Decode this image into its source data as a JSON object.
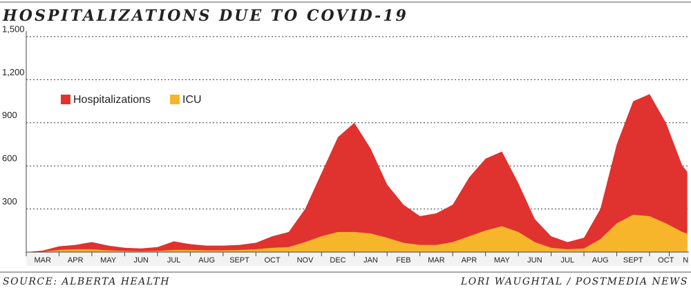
{
  "chart_data": {
    "type": "area",
    "title": "HOSPITALIZATIONS DUE TO COVID-19",
    "source": "SOURCE: ALBERTA HEALTH",
    "credit": "LORI WAUGHTAL / POSTMEDIA NEWS",
    "x": [
      0,
      0.5,
      1,
      1.5,
      2,
      2.5,
      3,
      3.5,
      4,
      4.5,
      5,
      5.5,
      6,
      6.5,
      7,
      7.5,
      8,
      8.5,
      9,
      9.5,
      10,
      10.5,
      11,
      11.5,
      12,
      12.5,
      13,
      13.5,
      14,
      14.5,
      15,
      15.5,
      16,
      16.5,
      17,
      17.5,
      18,
      18.5,
      19,
      19.5,
      20,
      20.15
    ],
    "series": [
      {
        "name": "Hospitalizations",
        "color": "#e0322f",
        "values": [
          0,
          10,
          40,
          50,
          70,
          45,
          30,
          25,
          35,
          75,
          55,
          45,
          45,
          50,
          65,
          110,
          140,
          300,
          550,
          800,
          900,
          720,
          470,
          330,
          250,
          270,
          330,
          520,
          650,
          700,
          480,
          230,
          110,
          70,
          100,
          300,
          750,
          1050,
          1100,
          900,
          600,
          560
        ]
      },
      {
        "name": "ICU",
        "color": "#f7b52c",
        "values": [
          0,
          3,
          15,
          20,
          20,
          12,
          8,
          6,
          8,
          15,
          15,
          12,
          12,
          15,
          20,
          30,
          35,
          70,
          110,
          140,
          140,
          130,
          100,
          65,
          50,
          50,
          70,
          110,
          150,
          180,
          140,
          70,
          30,
          20,
          25,
          90,
          200,
          260,
          250,
          200,
          140,
          130
        ]
      }
    ],
    "xlim": [
      0,
      20.2
    ],
    "xticks": [
      {
        "value": 0.5,
        "label": "MAR"
      },
      {
        "value": 1.5,
        "label": "APR"
      },
      {
        "value": 2.5,
        "label": "MAY"
      },
      {
        "value": 3.5,
        "label": "JUN"
      },
      {
        "value": 4.5,
        "label": "JUL"
      },
      {
        "value": 5.5,
        "label": "AUG"
      },
      {
        "value": 6.5,
        "label": "SEPT"
      },
      {
        "value": 7.5,
        "label": "OCT"
      },
      {
        "value": 8.5,
        "label": "NOV"
      },
      {
        "value": 9.5,
        "label": "DEC"
      },
      {
        "value": 10.5,
        "label": "JAN"
      },
      {
        "value": 11.5,
        "label": "FEB"
      },
      {
        "value": 12.5,
        "label": "MAR"
      },
      {
        "value": 13.5,
        "label": "APR"
      },
      {
        "value": 14.5,
        "label": "MAY"
      },
      {
        "value": 15.5,
        "label": "JUN"
      },
      {
        "value": 16.5,
        "label": "JUL"
      },
      {
        "value": 17.5,
        "label": "AUG"
      },
      {
        "value": 18.5,
        "label": "SEPT"
      },
      {
        "value": 19.5,
        "label": "OCT"
      },
      {
        "value": 20.1,
        "label": "N"
      }
    ],
    "ylim": [
      0,
      1500
    ],
    "yticks": [
      300,
      600,
      900,
      {
        "value": 1200,
        "label": "1,200"
      },
      {
        "value": 1500,
        "label": "1,500"
      }
    ],
    "grid": true,
    "legend": "upper-left"
  }
}
